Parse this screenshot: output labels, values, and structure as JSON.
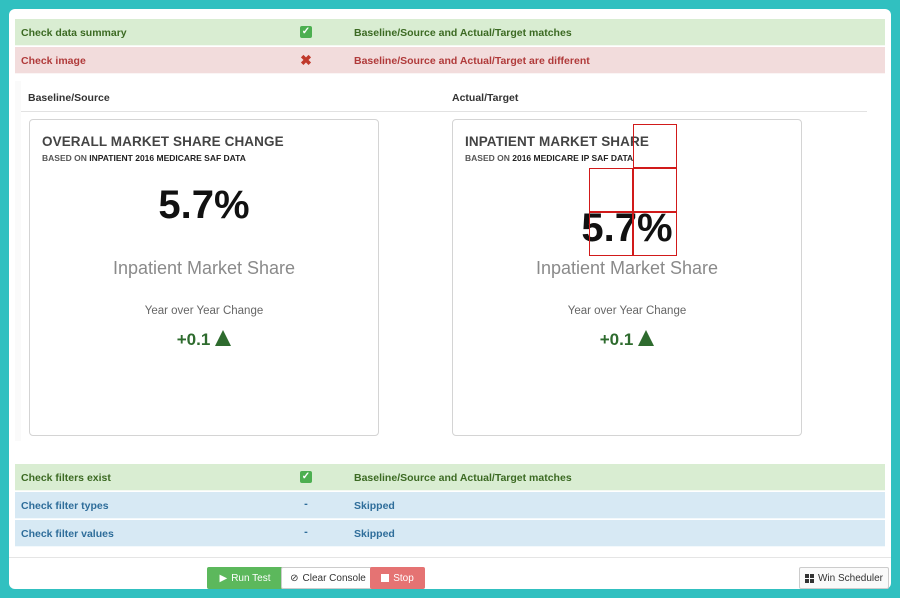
{
  "checks_top": [
    {
      "name": "Check data summary",
      "status": "pass",
      "message": "Baseline/Source and Actual/Target matches"
    },
    {
      "name": "Check image",
      "status": "fail",
      "message": "Baseline/Source and Actual/Target are different"
    }
  ],
  "comparison": {
    "baseline_heading": "Baseline/Source",
    "actual_heading": "Actual/Target",
    "baseline_card": {
      "title": "OVERALL MARKET SHARE CHANGE",
      "subtitle_prefix": "BASED ON",
      "subtitle_bold": "INPATIENT 2016 MEDICARE SAF DATA",
      "value": "5.7%",
      "metric_label": "Inpatient Market Share",
      "change_label": "Year over Year Change",
      "change_value": "+0.1"
    },
    "actual_card": {
      "title": "INPATIENT MARKET SHARE",
      "subtitle_prefix": "BASED ON",
      "subtitle_bold": "2016 MEDICARE IP SAF DATA",
      "value": "5.7%",
      "metric_label": "Inpatient Market Share",
      "change_label": "Year over Year Change",
      "change_value": "+0.1"
    }
  },
  "checks_bottom": [
    {
      "name": "Check filters exist",
      "status": "pass",
      "message": "Baseline/Source and Actual/Target matches"
    },
    {
      "name": "Check filter types",
      "status": "-",
      "message": "Skipped"
    },
    {
      "name": "Check filter values",
      "status": "-",
      "message": "Skipped"
    }
  ],
  "toolbar": {
    "run_label": "Run Test",
    "clear_label": "Clear Console",
    "stop_label": "Stop",
    "scheduler_label": "Win Scheduler"
  },
  "colors": {
    "pass_bg": "#d9edd2",
    "fail_bg": "#f2dcdc",
    "skip_bg": "#d7e9f4",
    "diff_highlight": "#d11a1a",
    "trend_up": "#2e6b2e"
  },
  "icons": {
    "pass": "check-icon",
    "fail": "x-icon",
    "up": "triangle-up-icon"
  }
}
